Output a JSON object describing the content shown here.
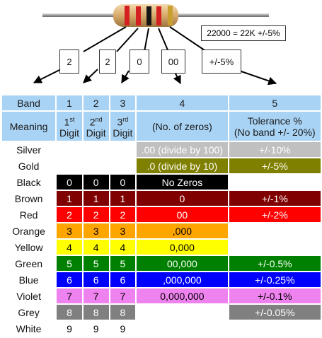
{
  "formula": "22000 = 22K +/-5%",
  "code_boxes": [
    "2",
    "2",
    "0",
    "00",
    "+/-5%"
  ],
  "headers": {
    "band": "Band",
    "b1": "1",
    "b2": "2",
    "b3": "3",
    "b4": "4",
    "b5": "5"
  },
  "meaning": {
    "label": "Meaning",
    "d1_num": "1",
    "d1_sup": "st",
    "d1_word": "Digit",
    "d2_num": "2",
    "d2_sup": "nd",
    "d2_word": "Digit",
    "d3_num": "3",
    "d3_sup": "rd",
    "d3_word": "Digit",
    "zeros": "(No. of zeros)",
    "tolerance_line1": "Tolerance %",
    "tolerance_line2": "(No band +/- 20%)"
  },
  "rows": [
    {
      "name": "Silver",
      "digit": "",
      "zeros": ".00 (divide by 100)",
      "tolerance": "+/-10%",
      "color": "#c0c0c0",
      "text_color": "#ffffff"
    },
    {
      "name": "Gold",
      "digit": "",
      "zeros": ".0 (divide by 10)",
      "tolerance": "+/-5%",
      "color": "#808000",
      "text_color": "#ffffff"
    },
    {
      "name": "Black",
      "digit": "0",
      "zeros": "No Zeros",
      "tolerance": "",
      "color": "#000000",
      "text_color": "#ffffff"
    },
    {
      "name": "Brown",
      "digit": "1",
      "zeros": "0",
      "tolerance": "+/-1%",
      "color": "#800000",
      "text_color": "#ffffff"
    },
    {
      "name": "Red",
      "digit": "2",
      "zeros": "00",
      "tolerance": "+/-2%",
      "color": "#ff0000",
      "text_color": "#ffffff"
    },
    {
      "name": "Orange",
      "digit": "3",
      "zeros": ",000",
      "tolerance": "",
      "color": "#ffa500",
      "text_color": "#000000"
    },
    {
      "name": "Yellow",
      "digit": "4",
      "zeros": "0,000",
      "tolerance": "",
      "color": "#ffff00",
      "text_color": "#000000"
    },
    {
      "name": "Green",
      "digit": "5",
      "zeros": "00,000",
      "tolerance": "+/-0.5%",
      "color": "#008000",
      "text_color": "#ffffff"
    },
    {
      "name": "Blue",
      "digit": "6",
      "zeros": ",000,000",
      "tolerance": "+/-0.25%",
      "color": "#0000ff",
      "text_color": "#ffffff"
    },
    {
      "name": "Violet",
      "digit": "7",
      "zeros": "0,000,000",
      "tolerance": "+/-0.1%",
      "color": "#ee82ee",
      "text_color": "#000000"
    },
    {
      "name": "Grey",
      "digit": "8",
      "zeros": "",
      "tolerance": "+/-0.05%",
      "color": "#808080",
      "text_color": "#ffffff"
    },
    {
      "name": "White",
      "digit": "9",
      "zeros": "",
      "tolerance": "",
      "color": "#ffffff",
      "text_color": "#000000"
    }
  ]
}
